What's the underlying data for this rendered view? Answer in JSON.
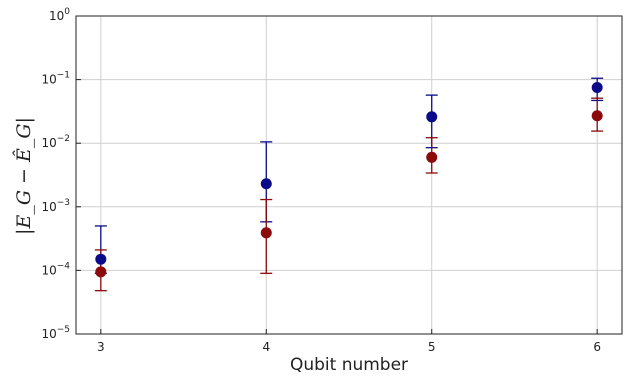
{
  "chart_data": {
    "type": "scatter",
    "xlabel": "Qubit number",
    "ylabel": "|E_G − Ê_G|",
    "x": [
      3,
      4,
      5,
      6
    ],
    "xlim": [
      2.85,
      6.15
    ],
    "ylim": [
      1e-05,
      1
    ],
    "yscale": "log",
    "grid": true,
    "yticks": [
      {
        "value": 1e-05,
        "base": "10",
        "exp": "−5"
      },
      {
        "value": 0.0001,
        "base": "10",
        "exp": "−4"
      },
      {
        "value": 0.001,
        "base": "10",
        "exp": "−3"
      },
      {
        "value": 0.01,
        "base": "10",
        "exp": "−2"
      },
      {
        "value": 0.1,
        "base": "10",
        "exp": "−1"
      },
      {
        "value": 1,
        "base": "10",
        "exp": "0"
      }
    ],
    "series": [
      {
        "color": "#0b0b8a",
        "values": [
          0.00015,
          0.0023,
          0.026,
          0.075
        ],
        "err_low": [
          9e-05,
          0.00058,
          0.0085,
          0.047
        ],
        "err_high": [
          0.0005,
          0.0105,
          0.057,
          0.105
        ]
      },
      {
        "color": "#8b0a0a",
        "values": [
          9.5e-05,
          0.00039,
          0.006,
          0.027
        ],
        "err_low": [
          4.8e-05,
          9e-05,
          0.0034,
          0.0155
        ],
        "err_high": [
          0.00021,
          0.0013,
          0.0122,
          0.051
        ]
      }
    ]
  }
}
